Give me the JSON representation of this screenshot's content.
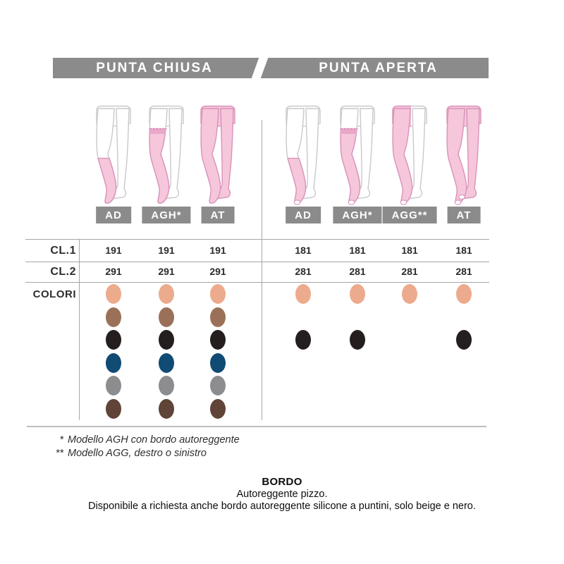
{
  "header": {
    "bar_color": "#8B8B8B",
    "left_label": "PUNTA CHIUSA",
    "right_label": "PUNTA APERTA"
  },
  "row_labels": {
    "cl1": "CL.1",
    "cl2": "CL.2",
    "colori": "COLORI"
  },
  "color_order": [
    "beige",
    "brown",
    "black",
    "blue",
    "gray",
    "dark_brown"
  ],
  "color_palette": {
    "beige": "#ECAB8C",
    "brown": "#9B7059",
    "black": "#241F1E",
    "blue": "#104B74",
    "gray": "#8D8D8F",
    "dark_brown": "#5F4437"
  },
  "illustration_colors": {
    "stocking_pink": "#F6C6DB",
    "stocking_outline": "#D893BA",
    "skin_outline": "#C9C9CE",
    "lace_band": "#E9A8CA",
    "lace_edge": "#CC7FAE"
  },
  "groups": [
    {
      "title": "PUNTA CHIUSA",
      "open_toe": false,
      "columns": [
        {
          "label": "AD",
          "model": "AD",
          "cl1": "191",
          "cl2": "291",
          "colors": [
            "beige",
            "brown",
            "black",
            "blue",
            "gray",
            "dark_brown"
          ]
        },
        {
          "label": "AGH*",
          "model": "AGH",
          "cl1": "191",
          "cl2": "291",
          "colors": [
            "beige",
            "brown",
            "black",
            "blue",
            "gray",
            "dark_brown"
          ]
        },
        {
          "label": "AT",
          "model": "AT",
          "cl1": "191",
          "cl2": "291",
          "colors": [
            "beige",
            "brown",
            "black",
            "blue",
            "gray",
            "dark_brown"
          ]
        }
      ]
    },
    {
      "title": "PUNTA APERTA",
      "open_toe": true,
      "columns": [
        {
          "label": "AD",
          "model": "AD",
          "cl1": "181",
          "cl2": "281",
          "colors": [
            "beige",
            "black"
          ]
        },
        {
          "label": "AGH*",
          "model": "AGH",
          "cl1": "181",
          "cl2": "281",
          "colors": [
            "beige",
            "black"
          ]
        },
        {
          "label": "AGG**",
          "model": "AGG",
          "cl1": "181",
          "cl2": "281",
          "colors": [
            "beige"
          ]
        },
        {
          "label": "AT",
          "model": "AT",
          "cl1": "181",
          "cl2": "281",
          "colors": [
            "beige",
            "black"
          ]
        }
      ]
    }
  ],
  "footnotes": [
    {
      "marker": "*",
      "text": "Modello AGH con bordo autoreggente"
    },
    {
      "marker": "**",
      "text": "Modello AGG, destro o sinistro"
    }
  ],
  "bordo": {
    "title": "BORDO",
    "line1": "Autoreggente pizzo.",
    "line2": "Disponibile a richiesta anche bordo autoreggente silicone a puntini, solo beige e nero."
  }
}
